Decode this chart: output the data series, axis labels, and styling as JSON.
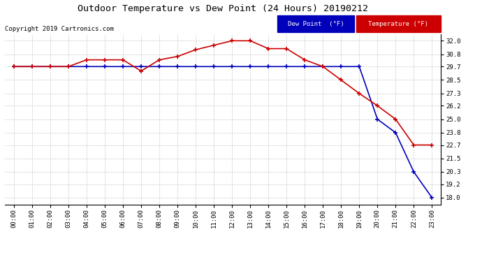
{
  "title": "Outdoor Temperature vs Dew Point (24 Hours) 20190212",
  "copyright": "Copyright 2019 Cartronics.com",
  "background_color": "#ffffff",
  "plot_bg_color": "#ffffff",
  "grid_color": "#bbbbbb",
  "x_labels": [
    "00:00",
    "01:00",
    "02:00",
    "03:00",
    "04:00",
    "05:00",
    "06:00",
    "07:00",
    "08:00",
    "09:00",
    "10:00",
    "11:00",
    "12:00",
    "13:00",
    "14:00",
    "15:00",
    "16:00",
    "17:00",
    "18:00",
    "19:00",
    "20:00",
    "21:00",
    "22:00",
    "23:00"
  ],
  "y_ticks": [
    18.0,
    19.2,
    20.3,
    21.5,
    22.7,
    23.8,
    25.0,
    26.2,
    27.3,
    28.5,
    29.7,
    30.8,
    32.0
  ],
  "ylim": [
    17.4,
    32.6
  ],
  "temp_color": "#cc0000",
  "dew_color": "#0000bb",
  "temp_data": [
    29.7,
    29.7,
    29.7,
    29.7,
    30.3,
    30.3,
    30.3,
    29.3,
    30.3,
    30.6,
    31.2,
    31.6,
    32.0,
    32.0,
    31.3,
    31.3,
    30.3,
    29.7,
    28.5,
    27.3,
    26.2,
    25.0,
    22.7,
    22.7
  ],
  "dew_data": [
    29.7,
    29.7,
    29.7,
    29.7,
    29.7,
    29.7,
    29.7,
    29.7,
    29.7,
    29.7,
    29.7,
    29.7,
    29.7,
    29.7,
    29.7,
    29.7,
    29.7,
    29.7,
    29.7,
    29.7,
    25.0,
    23.8,
    20.3,
    18.0
  ],
  "legend_dew_color": "#0000bb",
  "legend_temp_color": "#cc0000",
  "legend_text_color": "#ffffff",
  "dpi": 100,
  "figwidth": 6.9,
  "figheight": 3.75
}
